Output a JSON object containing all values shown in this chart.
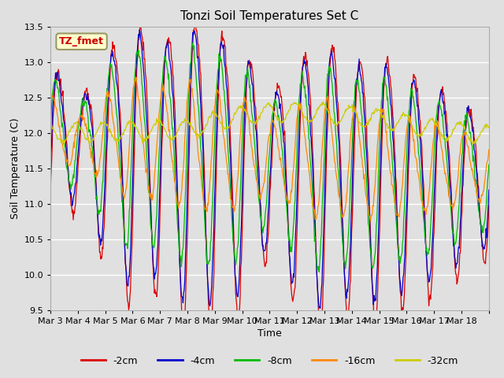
{
  "title": "Tonzi Soil Temperatures Set C",
  "xlabel": "Time",
  "ylabel": "Soil Temperature (C)",
  "ylim": [
    9.5,
    13.5
  ],
  "annotation_text": "TZ_fmet",
  "annotation_color": "#cc0000",
  "annotation_bg": "#ffffcc",
  "annotation_border": "#999966",
  "bg_color": "#e0e0e0",
  "legend_labels": [
    "-2cm",
    "-4cm",
    "-8cm",
    "-16cm",
    "-32cm"
  ],
  "line_colors": [
    "#dd0000",
    "#0000cc",
    "#00bb00",
    "#ff8800",
    "#cccc00"
  ],
  "xtick_labels": [
    "Mar 3",
    "Mar 4",
    "Mar 5",
    "Mar 6",
    "Mar 7",
    "Mar 8",
    "Mar 9",
    "Mar 10",
    "Mar 11",
    "Mar 12",
    "Mar 13",
    "Mar 14",
    "Mar 15",
    "Mar 16",
    "Mar 17",
    "Mar 18"
  ],
  "num_days": 16,
  "points_per_day": 48
}
